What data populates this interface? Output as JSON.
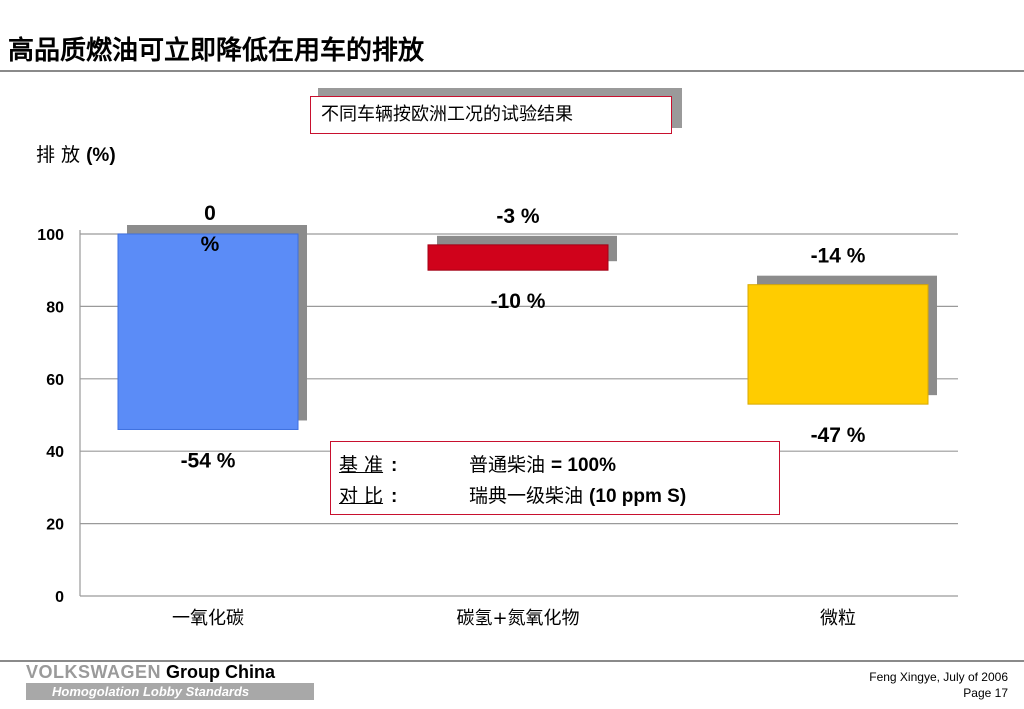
{
  "slide": {
    "title": "高品质燃油可立即降低在用车的排放",
    "subtitle": "不同车辆按欧洲工况的试验结果",
    "ylabel_text": "排 放 ",
    "ylabel_unit": "(%)"
  },
  "legend": {
    "row1_key": "基 准",
    "row1_colon": ":",
    "row1_value": "普通柴油 ",
    "row1_value_bold": "= 100%",
    "row2_key": "对 比",
    "row2_colon": ":",
    "row2_value": "瑞典一级柴油 ",
    "row2_value_bold": "(10 ppm S)"
  },
  "footer": {
    "brand_light": "VOLKSWAGEN",
    "brand_dark": " Group China",
    "tagline": "Homogolation Lobby Standards",
    "author": "Feng Xingye, July of  2006",
    "page": "Page 17"
  },
  "colors": {
    "bar_co": "#5b8cf7",
    "bar_hc_nox": "#d0021b",
    "bar_pm": "#ffcc00",
    "shadow": "#8c8c8c",
    "accent_border": "#c8102e"
  },
  "chart_data": {
    "type": "bar",
    "subtype": "floating range bars",
    "categories": [
      "一氧化碳",
      "碳氢+氮氧化物",
      "微粒"
    ],
    "ylim": [
      0,
      100
    ],
    "yticks": [
      "0",
      "20",
      "40",
      "60",
      "80",
      "100"
    ],
    "bars": [
      {
        "category": "一氧化碳",
        "top": 100,
        "bottom": 46,
        "top_label": "0 %",
        "bottom_label": "-54 %"
      },
      {
        "category": "碳氢+氮氧化物",
        "top": 97,
        "bottom": 90,
        "top_label": "-3 %",
        "bottom_label": "-10 %"
      },
      {
        "category": "微粒",
        "top": 86,
        "bottom": 53,
        "top_label": "-14 %",
        "bottom_label": "-47 %"
      }
    ],
    "grid": "horizontal"
  }
}
